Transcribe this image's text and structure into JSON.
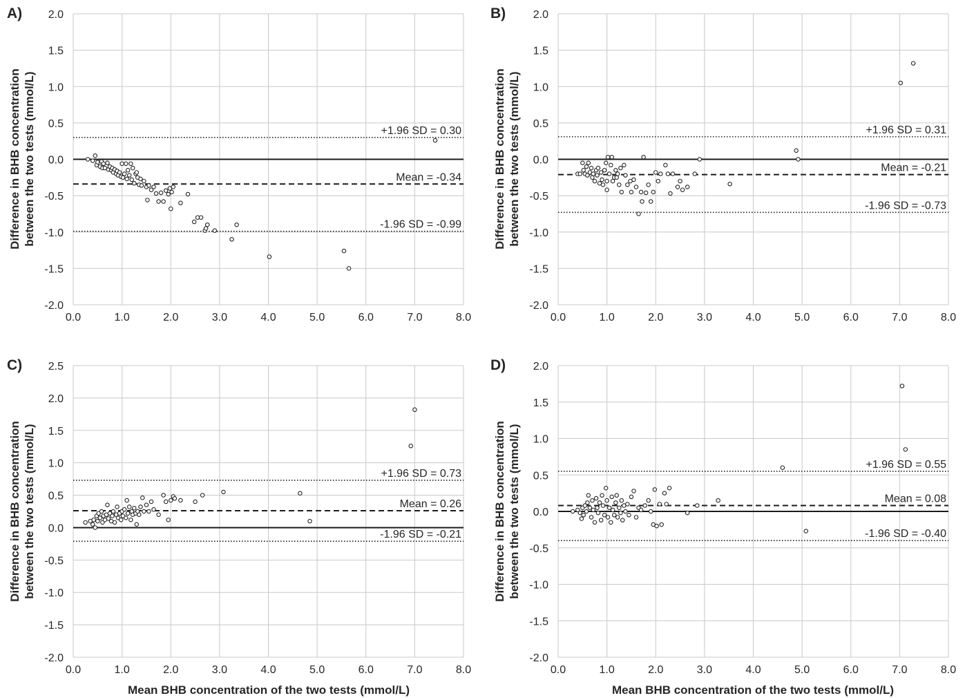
{
  "figure": {
    "xlabel": "Mean BHB concentration of the two tests (mmol/L)",
    "ylabel_line1": "Difference in BHB concentration",
    "ylabel_line2": "between the two tests (mmol/L)"
  },
  "chart_data": [
    {
      "panel": "A)",
      "type": "scatter",
      "xlabel": "",
      "ylabel": "Difference in BHB concentration between the two tests (mmol/L)",
      "xlim": [
        0,
        8
      ],
      "ylim": [
        -2,
        2
      ],
      "xticks": [
        0,
        1,
        2,
        3,
        4,
        5,
        6,
        7,
        8
      ],
      "yticks": [
        -2,
        -1.5,
        -1,
        -0.5,
        0,
        0.5,
        1,
        1.5,
        2
      ],
      "grid": true,
      "reference_lines": [
        {
          "y": 0.3,
          "style": "dotted",
          "label": "+1.96 SD = 0.30"
        },
        {
          "y": -0.34,
          "style": "dashed",
          "label": "Mean = -0.34"
        },
        {
          "y": -0.99,
          "style": "dotted",
          "label": "-1.96 SD = -0.99"
        }
      ],
      "points": [
        [
          0.3,
          0.0
        ],
        [
          0.4,
          -0.02
        ],
        [
          0.45,
          0.05
        ],
        [
          0.48,
          -0.08
        ],
        [
          0.5,
          -0.04
        ],
        [
          0.55,
          -0.1
        ],
        [
          0.58,
          -0.03
        ],
        [
          0.6,
          -0.12
        ],
        [
          0.62,
          -0.06
        ],
        [
          0.65,
          -0.12
        ],
        [
          0.7,
          -0.05
        ],
        [
          0.72,
          -0.14
        ],
        [
          0.75,
          -0.1
        ],
        [
          0.78,
          -0.15
        ],
        [
          0.8,
          -0.12
        ],
        [
          0.82,
          -0.18
        ],
        [
          0.85,
          -0.14
        ],
        [
          0.88,
          -0.2
        ],
        [
          0.9,
          -0.16
        ],
        [
          0.92,
          -0.22
        ],
        [
          0.95,
          -0.18
        ],
        [
          0.98,
          -0.24
        ],
        [
          1.0,
          -0.06
        ],
        [
          1.02,
          -0.25
        ],
        [
          1.05,
          -0.2
        ],
        [
          1.08,
          -0.06
        ],
        [
          1.1,
          -0.27
        ],
        [
          1.12,
          -0.15
        ],
        [
          1.15,
          -0.22
        ],
        [
          1.18,
          -0.06
        ],
        [
          1.2,
          -0.28
        ],
        [
          1.22,
          -0.12
        ],
        [
          1.25,
          -0.33
        ],
        [
          1.28,
          -0.2
        ],
        [
          1.3,
          -0.18
        ],
        [
          1.32,
          -0.25
        ],
        [
          1.35,
          -0.35
        ],
        [
          1.38,
          -0.27
        ],
        [
          1.4,
          -0.36
        ],
        [
          1.45,
          -0.3
        ],
        [
          1.5,
          -0.38
        ],
        [
          1.52,
          -0.56
        ],
        [
          1.55,
          -0.36
        ],
        [
          1.6,
          -0.42
        ],
        [
          1.65,
          -0.38
        ],
        [
          1.7,
          -0.47
        ],
        [
          1.75,
          -0.58
        ],
        [
          1.8,
          -0.46
        ],
        [
          1.85,
          -0.58
        ],
        [
          1.9,
          -0.43
        ],
        [
          1.95,
          -0.48
        ],
        [
          1.98,
          -0.4
        ],
        [
          2.0,
          -0.68
        ],
        [
          2.02,
          -0.45
        ],
        [
          2.05,
          -0.38
        ],
        [
          2.2,
          -0.6
        ],
        [
          2.35,
          -0.48
        ],
        [
          2.48,
          -0.86
        ],
        [
          2.55,
          -0.8
        ],
        [
          2.62,
          -0.8
        ],
        [
          2.7,
          -0.98
        ],
        [
          2.72,
          -0.95
        ],
        [
          2.75,
          -0.9
        ],
        [
          2.9,
          -0.98
        ],
        [
          3.25,
          -1.1
        ],
        [
          3.35,
          -0.9
        ],
        [
          4.02,
          -1.34
        ],
        [
          5.55,
          -1.26
        ],
        [
          5.65,
          -1.5
        ],
        [
          7.42,
          0.26
        ]
      ]
    },
    {
      "panel": "B)",
      "type": "scatter",
      "xlabel": "",
      "ylabel": "Difference in BHB concentration between the two tests (mmol/L)",
      "xlim": [
        0,
        8
      ],
      "ylim": [
        -2,
        2
      ],
      "xticks": [
        0,
        1,
        2,
        3,
        4,
        5,
        6,
        7,
        8
      ],
      "yticks": [
        -2,
        -1.5,
        -1,
        -0.5,
        0,
        0.5,
        1,
        1.5,
        2
      ],
      "grid": true,
      "reference_lines": [
        {
          "y": 0.31,
          "style": "dotted",
          "label": "+1.96 SD = 0.31"
        },
        {
          "y": -0.21,
          "style": "dashed",
          "label": "Mean = -0.21"
        },
        {
          "y": -0.73,
          "style": "dotted",
          "label": "-1.96 SD = -0.73"
        }
      ],
      "points": [
        [
          0.4,
          -0.2
        ],
        [
          0.45,
          -0.2
        ],
        [
          0.5,
          -0.05
        ],
        [
          0.52,
          -0.15
        ],
        [
          0.55,
          -0.2
        ],
        [
          0.58,
          -0.1
        ],
        [
          0.6,
          -0.22
        ],
        [
          0.62,
          -0.05
        ],
        [
          0.65,
          -0.18
        ],
        [
          0.68,
          -0.12
        ],
        [
          0.7,
          -0.25
        ],
        [
          0.72,
          -0.2
        ],
        [
          0.75,
          -0.3
        ],
        [
          0.78,
          -0.15
        ],
        [
          0.8,
          -0.22
        ],
        [
          0.82,
          -0.12
        ],
        [
          0.85,
          -0.33
        ],
        [
          0.88,
          -0.18
        ],
        [
          0.9,
          -0.28
        ],
        [
          0.92,
          -0.35
        ],
        [
          0.95,
          -0.15
        ],
        [
          0.98,
          -0.05
        ],
        [
          1.0,
          -0.3
        ],
        [
          1.0,
          -0.42
        ],
        [
          1.02,
          0.03
        ],
        [
          1.05,
          -0.2
        ],
        [
          1.08,
          -0.08
        ],
        [
          1.1,
          0.03
        ],
        [
          1.12,
          -0.3
        ],
        [
          1.15,
          -0.25
        ],
        [
          1.18,
          -0.15
        ],
        [
          1.2,
          -0.25
        ],
        [
          1.22,
          -0.2
        ],
        [
          1.25,
          -0.35
        ],
        [
          1.28,
          -0.12
        ],
        [
          1.3,
          -0.45
        ],
        [
          1.35,
          -0.08
        ],
        [
          1.38,
          -0.22
        ],
        [
          1.42,
          -0.35
        ],
        [
          1.48,
          -0.3
        ],
        [
          1.5,
          -0.45
        ],
        [
          1.55,
          -0.28
        ],
        [
          1.6,
          -0.38
        ],
        [
          1.65,
          -0.75
        ],
        [
          1.7,
          -0.45
        ],
        [
          1.72,
          -0.58
        ],
        [
          1.75,
          0.03
        ],
        [
          1.8,
          -0.46
        ],
        [
          1.85,
          -0.35
        ],
        [
          1.9,
          -0.58
        ],
        [
          1.95,
          -0.45
        ],
        [
          2.0,
          -0.18
        ],
        [
          2.05,
          -0.3
        ],
        [
          2.1,
          -0.2
        ],
        [
          2.2,
          -0.08
        ],
        [
          2.25,
          -0.2
        ],
        [
          2.3,
          -0.47
        ],
        [
          2.35,
          -0.2
        ],
        [
          2.45,
          -0.38
        ],
        [
          2.5,
          -0.3
        ],
        [
          2.55,
          -0.42
        ],
        [
          2.65,
          -0.38
        ],
        [
          2.8,
          -0.2
        ],
        [
          2.9,
          0.0
        ],
        [
          3.52,
          -0.34
        ],
        [
          4.88,
          0.12
        ],
        [
          4.92,
          0.0
        ],
        [
          7.02,
          1.05
        ],
        [
          7.28,
          1.32
        ]
      ]
    },
    {
      "panel": "C)",
      "type": "scatter",
      "xlabel": "Mean BHB concentration of the two tests (mmol/L)",
      "ylabel": "Difference in BHB concentration between the two tests (mmol/L)",
      "xlim": [
        0,
        8
      ],
      "ylim": [
        -2,
        2.5
      ],
      "xticks": [
        0,
        1,
        2,
        3,
        4,
        5,
        6,
        7,
        8
      ],
      "yticks": [
        -2,
        -1.5,
        -1,
        -0.5,
        0,
        0.5,
        1,
        1.5,
        2,
        2.5
      ],
      "grid": true,
      "reference_lines": [
        {
          "y": 0.73,
          "style": "dotted",
          "label": "+1.96 SD = 0.73"
        },
        {
          "y": 0.26,
          "style": "dashed",
          "label": "Mean = 0.26"
        },
        {
          "y": -0.21,
          "style": "dotted",
          "label": "-1.96 SD = -0.21"
        }
      ],
      "points": [
        [
          0.25,
          0.08
        ],
        [
          0.35,
          0.1
        ],
        [
          0.4,
          0.05
        ],
        [
          0.42,
          0.12
        ],
        [
          0.45,
          0.0
        ],
        [
          0.48,
          0.18
        ],
        [
          0.5,
          0.1
        ],
        [
          0.52,
          0.22
        ],
        [
          0.55,
          0.15
        ],
        [
          0.58,
          0.25
        ],
        [
          0.6,
          0.08
        ],
        [
          0.62,
          0.18
        ],
        [
          0.65,
          0.12
        ],
        [
          0.68,
          0.2
        ],
        [
          0.7,
          0.35
        ],
        [
          0.72,
          0.14
        ],
        [
          0.75,
          0.22
        ],
        [
          0.78,
          0.1
        ],
        [
          0.8,
          0.18
        ],
        [
          0.82,
          0.25
        ],
        [
          0.85,
          0.08
        ],
        [
          0.88,
          0.2
        ],
        [
          0.9,
          0.32
        ],
        [
          0.92,
          0.15
        ],
        [
          0.95,
          0.22
        ],
        [
          0.98,
          0.12
        ],
        [
          1.0,
          0.25
        ],
        [
          1.02,
          0.18
        ],
        [
          1.05,
          0.28
        ],
        [
          1.08,
          0.15
        ],
        [
          1.1,
          0.42
        ],
        [
          1.12,
          0.22
        ],
        [
          1.15,
          0.32
        ],
        [
          1.18,
          0.12
        ],
        [
          1.2,
          0.25
        ],
        [
          1.22,
          0.2
        ],
        [
          1.25,
          0.3
        ],
        [
          1.28,
          0.22
        ],
        [
          1.3,
          0.05
        ],
        [
          1.32,
          0.25
        ],
        [
          1.35,
          0.2
        ],
        [
          1.38,
          0.32
        ],
        [
          1.42,
          0.46
        ],
        [
          1.45,
          0.25
        ],
        [
          1.5,
          0.35
        ],
        [
          1.55,
          0.25
        ],
        [
          1.6,
          0.4
        ],
        [
          1.65,
          0.28
        ],
        [
          1.75,
          0.2
        ],
        [
          1.85,
          0.5
        ],
        [
          1.9,
          0.4
        ],
        [
          1.95,
          0.12
        ],
        [
          2.0,
          0.42
        ],
        [
          2.05,
          0.48
        ],
        [
          2.08,
          0.45
        ],
        [
          2.2,
          0.42
        ],
        [
          2.5,
          0.4
        ],
        [
          2.65,
          0.5
        ],
        [
          3.08,
          0.55
        ],
        [
          4.65,
          0.53
        ],
        [
          4.85,
          0.1
        ],
        [
          6.92,
          1.26
        ],
        [
          7.0,
          1.82
        ]
      ]
    },
    {
      "panel": "D)",
      "type": "scatter",
      "xlabel": "Mean BHB concentration of the two tests (mmol/L)",
      "ylabel": "Difference in BHB concentration between the two tests (mmol/L)",
      "xlim": [
        0,
        8
      ],
      "ylim": [
        -2,
        2
      ],
      "xticks": [
        0,
        1,
        2,
        3,
        4,
        5,
        6,
        7,
        8
      ],
      "yticks": [
        -2,
        -1.5,
        -1,
        -0.5,
        0,
        0.5,
        1,
        1.5,
        2
      ],
      "grid": true,
      "reference_lines": [
        {
          "y": 0.55,
          "style": "dotted",
          "label": "+1.96 SD = 0.55"
        },
        {
          "y": 0.08,
          "style": "dashed",
          "label": "Mean = 0.08"
        },
        {
          "y": -0.4,
          "style": "dotted",
          "label": "-1.96 SD = -0.40"
        }
      ],
      "points": [
        [
          0.3,
          0.0
        ],
        [
          0.4,
          0.02
        ],
        [
          0.45,
          -0.02
        ],
        [
          0.48,
          -0.1
        ],
        [
          0.5,
          0.05
        ],
        [
          0.52,
          -0.05
        ],
        [
          0.55,
          0.08
        ],
        [
          0.58,
          0.0
        ],
        [
          0.6,
          0.12
        ],
        [
          0.62,
          0.22
        ],
        [
          0.65,
          0.05
        ],
        [
          0.68,
          -0.08
        ],
        [
          0.7,
          0.15
        ],
        [
          0.72,
          0.02
        ],
        [
          0.75,
          -0.15
        ],
        [
          0.78,
          0.18
        ],
        [
          0.8,
          0.05
        ],
        [
          0.82,
          -0.02
        ],
        [
          0.85,
          0.12
        ],
        [
          0.88,
          -0.12
        ],
        [
          0.9,
          0.22
        ],
        [
          0.92,
          0.08
        ],
        [
          0.95,
          -0.05
        ],
        [
          0.98,
          0.32
        ],
        [
          1.0,
          0.15
        ],
        [
          1.02,
          -0.08
        ],
        [
          1.05,
          0.05
        ],
        [
          1.08,
          -0.15
        ],
        [
          1.1,
          0.2
        ],
        [
          1.12,
          0.02
        ],
        [
          1.15,
          -0.05
        ],
        [
          1.18,
          0.12
        ],
        [
          1.2,
          0.22
        ],
        [
          1.22,
          -0.08
        ],
        [
          1.25,
          0.05
        ],
        [
          1.28,
          -0.02
        ],
        [
          1.3,
          0.15
        ],
        [
          1.32,
          -0.12
        ],
        [
          1.35,
          0.08
        ],
        [
          1.38,
          0.0
        ],
        [
          1.42,
          0.1
        ],
        [
          1.45,
          -0.05
        ],
        [
          1.5,
          0.2
        ],
        [
          1.55,
          0.28
        ],
        [
          1.6,
          -0.08
        ],
        [
          1.65,
          0.05
        ],
        [
          1.7,
          0.02
        ],
        [
          1.78,
          0.08
        ],
        [
          1.85,
          0.15
        ],
        [
          1.9,
          0.0
        ],
        [
          1.95,
          -0.18
        ],
        [
          1.98,
          0.3
        ],
        [
          2.02,
          -0.2
        ],
        [
          2.08,
          0.1
        ],
        [
          2.12,
          -0.18
        ],
        [
          2.18,
          0.25
        ],
        [
          2.22,
          0.1
        ],
        [
          2.28,
          0.32
        ],
        [
          2.65,
          -0.02
        ],
        [
          2.85,
          0.08
        ],
        [
          3.28,
          0.15
        ],
        [
          4.6,
          0.6
        ],
        [
          5.08,
          -0.27
        ],
        [
          7.05,
          1.72
        ],
        [
          7.12,
          0.85
        ]
      ]
    }
  ]
}
